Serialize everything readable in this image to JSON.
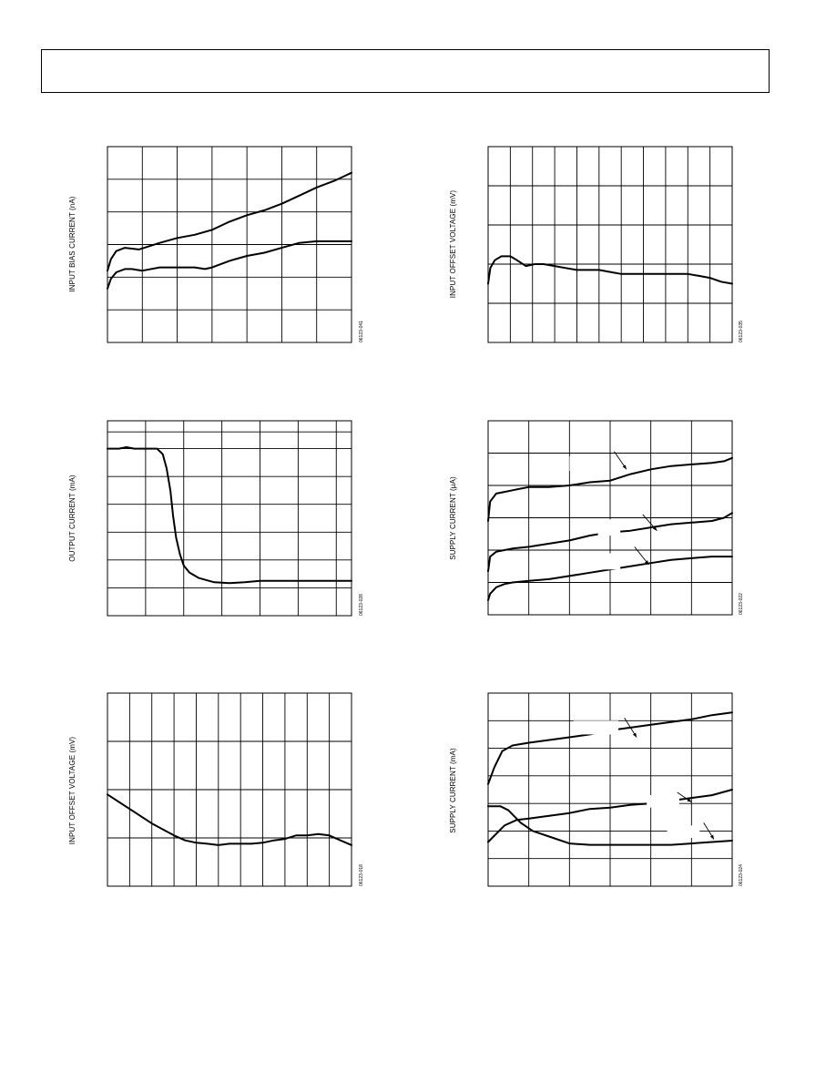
{
  "page": {},
  "chart_data": [
    {
      "type": "line",
      "ylabel": "INPUT BIAS CURRENT (nA)",
      "figure_code": "06123-041",
      "x_divisions": 7,
      "y_divisions": 6,
      "xlim": [
        0,
        7
      ],
      "ylim": [
        0,
        6
      ],
      "series": [
        {
          "x": [
            0,
            0.1,
            0.25,
            0.5,
            0.9,
            1.5,
            2,
            2.5,
            3,
            3.5,
            4,
            4.5,
            5,
            5.5,
            6,
            6.5,
            7
          ],
          "y": [
            2.2,
            2.55,
            2.8,
            2.9,
            2.85,
            3.05,
            3.2,
            3.3,
            3.45,
            3.7,
            3.9,
            4.05,
            4.25,
            4.5,
            4.75,
            4.95,
            5.2
          ]
        },
        {
          "x": [
            0,
            0.1,
            0.25,
            0.5,
            0.7,
            1,
            1.5,
            2,
            2.5,
            2.8,
            3,
            3.5,
            4,
            4.5,
            5,
            5.5,
            6,
            7
          ],
          "y": [
            1.65,
            1.95,
            2.15,
            2.25,
            2.25,
            2.2,
            2.3,
            2.3,
            2.3,
            2.25,
            2.3,
            2.5,
            2.65,
            2.75,
            2.9,
            3.05,
            3.1,
            3.1
          ]
        }
      ]
    },
    {
      "type": "line",
      "ylabel": "INPUT OFFSET VOLTAGE (mV)",
      "figure_code": "06123-035",
      "x_divisions": 11,
      "y_divisions": 5,
      "xlim": [
        0,
        11
      ],
      "ylim": [
        0,
        5
      ],
      "series": [
        {
          "x": [
            0,
            0.1,
            0.3,
            0.6,
            1,
            1.3,
            1.7,
            2.1,
            2.5,
            3,
            3.5,
            4,
            4.5,
            5,
            5.5,
            6,
            6.5,
            7,
            7.5,
            8,
            8.5,
            9,
            9.5,
            10,
            10.5,
            11
          ],
          "y": [
            1.5,
            1.9,
            2.1,
            2.2,
            2.2,
            2.1,
            1.95,
            2.0,
            2.0,
            1.95,
            1.9,
            1.85,
            1.85,
            1.85,
            1.8,
            1.75,
            1.75,
            1.75,
            1.75,
            1.75,
            1.75,
            1.75,
            1.7,
            1.65,
            1.55,
            1.5
          ]
        }
      ]
    },
    {
      "type": "line",
      "ylabel": "OUTPUT CURRENT (mA)",
      "figure_code": "06123-028",
      "x_divisions": 7,
      "y_divisions": 7,
      "x_grid": [
        1,
        2,
        3,
        4,
        5,
        6,
        6.4
      ],
      "y_grid": [
        1,
        2,
        3,
        4,
        5,
        6,
        6.6
      ],
      "xlim": [
        0,
        6.4
      ],
      "ylim": [
        0,
        7
      ],
      "series": [
        {
          "x": [
            0,
            0.3,
            0.5,
            0.7,
            1,
            1.3,
            1.45,
            1.55,
            1.65,
            1.72,
            1.8,
            1.9,
            2,
            2.15,
            2.4,
            2.8,
            3.2,
            3.6,
            4,
            5,
            6,
            6.4
          ],
          "y": [
            6,
            6,
            6.05,
            6,
            6,
            6,
            5.8,
            5.3,
            4.5,
            3.6,
            2.8,
            2.2,
            1.8,
            1.55,
            1.35,
            1.2,
            1.17,
            1.2,
            1.25,
            1.25,
            1.25,
            1.25
          ]
        }
      ]
    },
    {
      "type": "line",
      "ylabel": "SUPPLY CURRENT (µA)",
      "figure_code": "06123-022",
      "x_divisions": 6,
      "y_divisions": 6,
      "xlim": [
        0,
        6
      ],
      "ylim": [
        0,
        6
      ],
      "annotation_leaders": [
        [
          3.1,
          5.05,
          3.4,
          4.5
        ],
        [
          3.8,
          3.1,
          4.15,
          2.6
        ],
        [
          3.6,
          2.1,
          3.95,
          1.55
        ]
      ],
      "annotation_gaps": [
        [
          2.0,
          4.9,
          0.8,
          0.45
        ],
        [
          2.7,
          2.95,
          0.55,
          0.5
        ],
        [
          2.3,
          1.9,
          0.95,
          0.5
        ]
      ],
      "series": [
        {
          "x": [
            0,
            0.05,
            0.2,
            0.4,
            0.6,
            0.8,
            1,
            1.5,
            2,
            2.5,
            3,
            3.5,
            4,
            4.5,
            5,
            5.5,
            5.8,
            6
          ],
          "y": [
            2.9,
            3.5,
            3.75,
            3.8,
            3.85,
            3.9,
            3.95,
            3.95,
            4.0,
            4.1,
            4.15,
            4.35,
            4.5,
            4.6,
            4.65,
            4.7,
            4.75,
            4.85
          ]
        },
        {
          "x": [
            0,
            0.05,
            0.2,
            0.4,
            0.6,
            1,
            1.5,
            2,
            2.5,
            3,
            3.5,
            4,
            4.5,
            5,
            5.5,
            5.8,
            6
          ],
          "y": [
            1.35,
            1.8,
            1.95,
            2.0,
            2.05,
            2.1,
            2.2,
            2.3,
            2.45,
            2.55,
            2.6,
            2.7,
            2.8,
            2.85,
            2.9,
            3.0,
            3.15
          ]
        },
        {
          "x": [
            0,
            0.05,
            0.2,
            0.4,
            0.6,
            1,
            1.5,
            2,
            2.5,
            3,
            3.5,
            4,
            4.5,
            5,
            5.5,
            6
          ],
          "y": [
            0.45,
            0.65,
            0.85,
            0.95,
            1.0,
            1.05,
            1.1,
            1.2,
            1.3,
            1.4,
            1.5,
            1.6,
            1.7,
            1.75,
            1.8,
            1.8
          ]
        }
      ]
    },
    {
      "type": "line",
      "ylabel": "INPUT OFFSET VOLTAGE (mV)",
      "figure_code": "06123-018",
      "x_divisions": 11,
      "y_divisions": 4,
      "xlim": [
        0,
        11
      ],
      "ylim": [
        0,
        4
      ],
      "series": [
        {
          "x": [
            0,
            1,
            2,
            3,
            3.5,
            4,
            4.5,
            5,
            5.5,
            6,
            6.5,
            7,
            7.5,
            8,
            8.5,
            9,
            9.5,
            10,
            10.5,
            11
          ],
          "y": [
            1.9,
            1.6,
            1.3,
            1.05,
            0.95,
            0.9,
            0.88,
            0.85,
            0.88,
            0.88,
            0.88,
            0.9,
            0.95,
            0.98,
            1.05,
            1.05,
            1.08,
            1.05,
            0.95,
            0.85
          ]
        }
      ]
    },
    {
      "type": "line",
      "ylabel": "SUPPLY CURRENT (mA)",
      "figure_code": "06123-024",
      "x_divisions": 6,
      "y_divisions": 7,
      "xlim": [
        0,
        6
      ],
      "ylim": [
        0,
        7
      ],
      "annotation_leaders": [
        [
          3.35,
          6.1,
          3.65,
          5.4
        ],
        [
          4.65,
          3.4,
          5.0,
          3.05
        ],
        [
          5.3,
          2.3,
          5.55,
          1.7
        ]
      ],
      "annotation_gaps": [
        [
          2.1,
          6.0,
          1.1,
          0.5
        ],
        [
          3.9,
          3.3,
          0.8,
          0.45
        ],
        [
          4.4,
          2.2,
          0.8,
          0.45
        ]
      ],
      "series": [
        {
          "x": [
            0,
            0.15,
            0.35,
            0.6,
            1,
            1.5,
            2,
            2.5,
            3,
            3.5,
            4,
            4.5,
            5,
            5.5,
            6
          ],
          "y": [
            3.7,
            4.3,
            4.9,
            5.1,
            5.2,
            5.3,
            5.4,
            5.5,
            5.65,
            5.75,
            5.85,
            5.95,
            6.05,
            6.2,
            6.3
          ]
        },
        {
          "x": [
            0,
            0.2,
            0.4,
            0.7,
            1,
            1.5,
            2,
            2.5,
            3,
            3.5,
            4,
            4.5,
            5,
            5.5,
            6
          ],
          "y": [
            1.6,
            1.9,
            2.2,
            2.4,
            2.45,
            2.55,
            2.65,
            2.8,
            2.85,
            2.95,
            3.0,
            3.1,
            3.2,
            3.3,
            3.5
          ]
        },
        {
          "x": [
            0,
            0.3,
            0.5,
            0.8,
            1.1,
            1.5,
            2,
            2.5,
            3,
            3.5,
            4,
            4.5,
            5,
            5.5,
            6
          ],
          "y": [
            2.9,
            2.9,
            2.75,
            2.3,
            2.0,
            1.8,
            1.55,
            1.5,
            1.5,
            1.5,
            1.5,
            1.5,
            1.55,
            1.6,
            1.65
          ]
        }
      ]
    }
  ]
}
